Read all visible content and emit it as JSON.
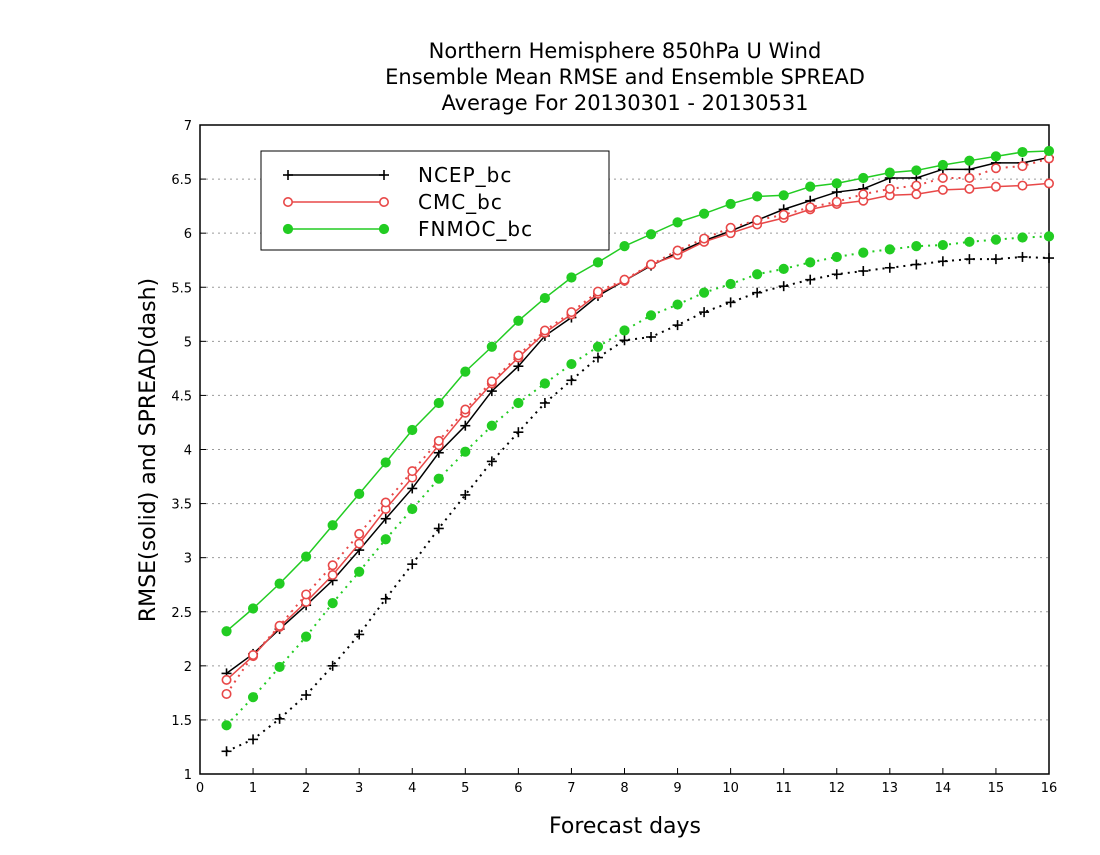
{
  "chart_data": {
    "type": "line",
    "title_lines": [
      "Northern Hemisphere 850hPa U Wind",
      "Ensemble Mean RMSE and Ensemble SPREAD",
      "Average For 20130301 - 20130531"
    ],
    "xlabel": "Forecast days",
    "ylabel": "RMSE(solid) and SPREAD(dash)",
    "xlim": [
      0,
      16
    ],
    "ylim": [
      1,
      7
    ],
    "xticks": [
      "0",
      "1",
      "2",
      "3",
      "4",
      "5",
      "6",
      "7",
      "8",
      "9",
      "10",
      "11",
      "12",
      "13",
      "14",
      "15",
      "16"
    ],
    "yticks": [
      "1",
      "1.5",
      "2",
      "2.5",
      "3",
      "3.5",
      "4",
      "4.5",
      "5",
      "5.5",
      "6",
      "6.5",
      "7"
    ],
    "grid": "horizontal dotted",
    "legend_position": "top-left",
    "x": [
      0.5,
      1,
      1.5,
      2,
      2.5,
      3,
      3.5,
      4,
      4.5,
      5,
      5.5,
      6,
      6.5,
      7,
      7.5,
      8,
      8.5,
      9,
      9.5,
      10,
      10.5,
      11,
      11.5,
      12,
      12.5,
      13,
      13.5,
      14,
      14.5,
      15,
      15.5,
      16
    ],
    "series": [
      {
        "name": "NCEP_bc",
        "color": "#000000",
        "marker": "plus",
        "rmse": [
          1.93,
          2.11,
          2.34,
          2.56,
          2.79,
          3.07,
          3.36,
          3.64,
          3.97,
          4.22,
          4.54,
          4.77,
          5.05,
          5.22,
          5.42,
          5.56,
          5.7,
          5.82,
          5.93,
          6.02,
          6.12,
          6.22,
          6.3,
          6.38,
          6.41,
          6.51,
          6.51,
          6.59,
          6.59,
          6.65,
          6.65,
          6.7
        ],
        "spread": [
          1.21,
          1.32,
          1.51,
          1.73,
          2.0,
          2.29,
          2.62,
          2.94,
          3.27,
          3.58,
          3.89,
          4.16,
          4.43,
          4.64,
          4.85,
          5.01,
          5.04,
          5.15,
          5.27,
          5.36,
          5.45,
          5.51,
          5.57,
          5.62,
          5.65,
          5.68,
          5.71,
          5.74,
          5.76,
          5.76,
          5.78,
          5.77
        ]
      },
      {
        "name": "CMC_bc",
        "color": "#e84848",
        "marker": "circle",
        "rmse": [
          1.87,
          2.09,
          2.36,
          2.59,
          2.84,
          3.13,
          3.45,
          3.74,
          4.04,
          4.34,
          4.61,
          4.85,
          5.08,
          5.25,
          5.44,
          5.56,
          5.71,
          5.8,
          5.92,
          6.0,
          6.08,
          6.14,
          6.22,
          6.27,
          6.3,
          6.35,
          6.36,
          6.4,
          6.41,
          6.43,
          6.44,
          6.46
        ],
        "spread": [
          1.74,
          2.1,
          2.37,
          2.66,
          2.93,
          3.22,
          3.51,
          3.8,
          4.08,
          4.37,
          4.63,
          4.87,
          5.1,
          5.27,
          5.46,
          5.57,
          5.71,
          5.84,
          5.95,
          6.05,
          6.12,
          6.17,
          6.24,
          6.29,
          6.36,
          6.41,
          6.44,
          6.51,
          6.51,
          6.6,
          6.62,
          6.69
        ]
      },
      {
        "name": "FNMOC_bc",
        "color": "#22cc22",
        "marker": "filled-circle",
        "rmse": [
          2.32,
          2.53,
          2.76,
          3.01,
          3.3,
          3.59,
          3.88,
          4.18,
          4.43,
          4.72,
          4.95,
          5.19,
          5.4,
          5.59,
          5.73,
          5.88,
          5.99,
          6.1,
          6.18,
          6.27,
          6.34,
          6.35,
          6.43,
          6.46,
          6.51,
          6.56,
          6.58,
          6.63,
          6.67,
          6.71,
          6.75,
          6.76
        ],
        "spread": [
          1.45,
          1.71,
          1.99,
          2.27,
          2.58,
          2.87,
          3.17,
          3.45,
          3.73,
          3.98,
          4.22,
          4.43,
          4.61,
          4.79,
          4.95,
          5.1,
          5.24,
          5.34,
          5.45,
          5.53,
          5.62,
          5.67,
          5.73,
          5.78,
          5.82,
          5.85,
          5.88,
          5.89,
          5.92,
          5.94,
          5.96,
          5.97
        ]
      }
    ]
  }
}
